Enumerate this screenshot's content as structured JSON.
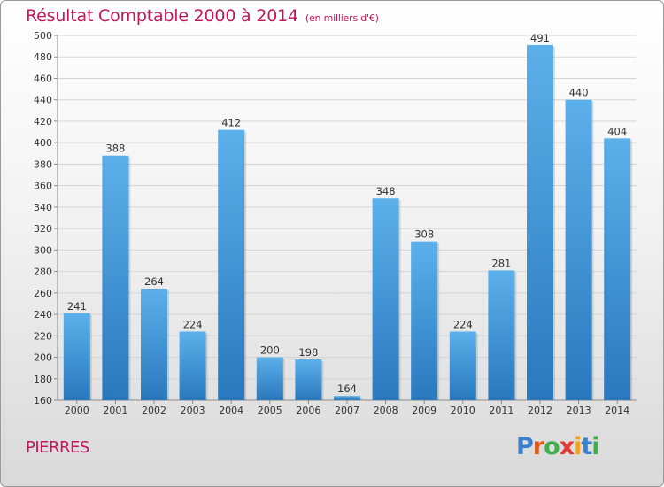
{
  "header": {
    "title": "Résultat Comptable 2000 à 2014",
    "unit": "(en milliers d'€)"
  },
  "footer": {
    "commune": "PIERRES",
    "logo": "Proxiti"
  },
  "colors": {
    "title": "#c0185a",
    "bar_top": "#5aaee8",
    "bar_bottom": "#2a78bd",
    "logo_letters": [
      "#3a7fd0",
      "#e05a1c",
      "#3fae4a",
      "#e53935",
      "#f2a21c",
      "#3a7fd0",
      "#3fae4a"
    ]
  },
  "chart_data": {
    "type": "bar",
    "categories": [
      "2000",
      "2001",
      "2002",
      "2003",
      "2004",
      "2005",
      "2006",
      "2007",
      "2008",
      "2009",
      "2010",
      "2011",
      "2012",
      "2013",
      "2014"
    ],
    "values": [
      241,
      388,
      264,
      224,
      412,
      200,
      198,
      164,
      348,
      308,
      224,
      281,
      491,
      440,
      404
    ],
    "yticks": [
      160,
      180,
      200,
      220,
      240,
      260,
      280,
      300,
      320,
      340,
      360,
      380,
      400,
      420,
      440,
      460,
      480,
      500
    ],
    "ylim": [
      160,
      500
    ],
    "grid": true,
    "data_labels": true
  }
}
